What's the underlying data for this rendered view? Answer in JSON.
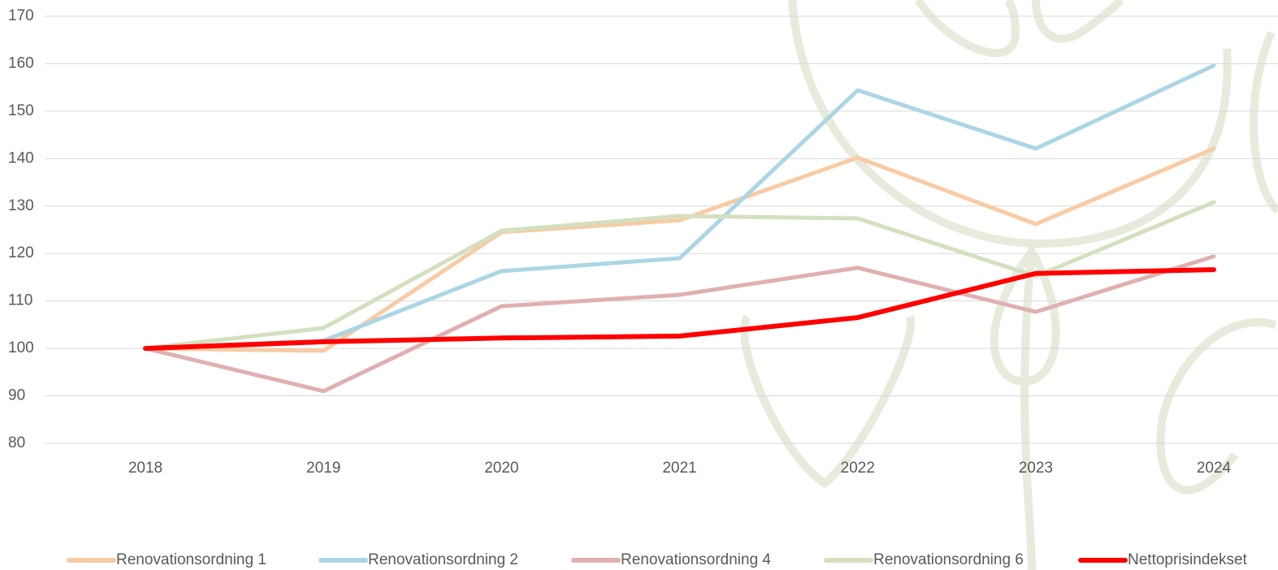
{
  "chart_data": {
    "type": "line",
    "x": [
      "2018",
      "2019",
      "2020",
      "2021",
      "2022",
      "2023",
      "2024"
    ],
    "series": [
      {
        "name": "Renovationsordning 1",
        "color": "#f8cba4",
        "values": [
          100,
          99.5,
          124.5,
          127,
          140.2,
          126.2,
          142.1
        ]
      },
      {
        "name": "Renovationsordning 2",
        "color": "#abd6e4",
        "values": [
          100,
          101.6,
          116.3,
          119,
          154.4,
          142.1,
          159.6
        ]
      },
      {
        "name": "Renovationsordning 4",
        "color": "#e0b0b0",
        "values": [
          100,
          91,
          108.9,
          111.3,
          117,
          107.7,
          119.4
        ]
      },
      {
        "name": "Renovationsordning 6",
        "color": "#d3e0bf",
        "values": [
          100,
          104.3,
          124.8,
          127.9,
          127.4,
          115.2,
          130.8
        ]
      },
      {
        "name": "Nettoprisindekset",
        "color": "#ff0000",
        "values": [
          100,
          101.4,
          102.2,
          102.6,
          106.5,
          115.8,
          116.6
        ]
      }
    ],
    "ylim": [
      80,
      170
    ],
    "yticks": [
      80,
      90,
      100,
      110,
      120,
      130,
      140,
      150,
      160,
      170
    ],
    "grid": true,
    "legend": "bottom"
  }
}
